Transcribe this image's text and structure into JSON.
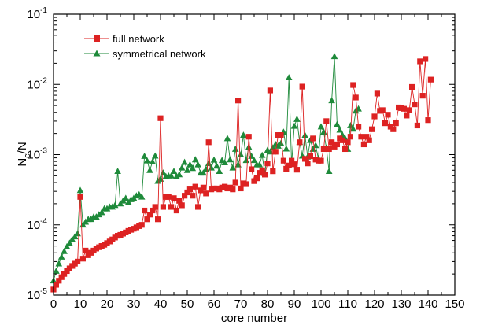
{
  "chart_data": {
    "type": "line",
    "xlabel": "core number",
    "ylabel": "N",
    "ylabel_sub": "c",
    "ylabel_suffix": "/N",
    "xlim": [
      0,
      150
    ],
    "ylim": [
      1e-05,
      0.1
    ],
    "yscale": "log",
    "grid": false,
    "legend_position": "top-left",
    "x_ticks": [
      0,
      10,
      20,
      30,
      40,
      50,
      60,
      70,
      80,
      90,
      100,
      110,
      120,
      130,
      140,
      150
    ],
    "y_ticks": [
      {
        "value": 1e-05,
        "base": "10",
        "exp": "-5"
      },
      {
        "value": 0.0001,
        "base": "10",
        "exp": "-4"
      },
      {
        "value": 0.001,
        "base": "10",
        "exp": "-3"
      },
      {
        "value": 0.01,
        "base": "10",
        "exp": "-2"
      },
      {
        "value": 0.1,
        "base": "10",
        "exp": "-1"
      }
    ],
    "series": [
      {
        "name": "full network",
        "marker": "square",
        "color": "#dd2222",
        "x": [
          0,
          1,
          2,
          3,
          4,
          5,
          6,
          7,
          8,
          9,
          10,
          11,
          12,
          13,
          14,
          15,
          16,
          17,
          18,
          19,
          20,
          21,
          22,
          23,
          24,
          25,
          26,
          27,
          28,
          29,
          30,
          31,
          32,
          33,
          34,
          35,
          36,
          37,
          38,
          39,
          40,
          41,
          42,
          43,
          44,
          45,
          46,
          47,
          48,
          49,
          50,
          51,
          52,
          53,
          54,
          55,
          56,
          57,
          58,
          59,
          60,
          61,
          62,
          63,
          64,
          65,
          66,
          67,
          68,
          69,
          70,
          71,
          72,
          73,
          74,
          75,
          76,
          77,
          78,
          79,
          80,
          81,
          82,
          83,
          84,
          85,
          86,
          87,
          88,
          89,
          90,
          91,
          92,
          93,
          94,
          95,
          96,
          97,
          98,
          99,
          100,
          101,
          102,
          103,
          104,
          105,
          106,
          107,
          108,
          109,
          110,
          111,
          112,
          113,
          114,
          115,
          116,
          117,
          118,
          119,
          120,
          121,
          122,
          123,
          124,
          125,
          126,
          127,
          128,
          129,
          130,
          131,
          132,
          133,
          134,
          135,
          136,
          137,
          138,
          139,
          140,
          141
        ],
        "y": [
          1.2e-05,
          1.4e-05,
          1.6e-05,
          1.8e-05,
          2e-05,
          2.2e-05,
          2.4e-05,
          2.6e-05,
          2.8e-05,
          3e-05,
          0.00025,
          3.3e-05,
          4.3e-05,
          3.7e-05,
          4e-05,
          4.3e-05,
          4.6e-05,
          4.8e-05,
          5e-05,
          5.2e-05,
          5.5e-05,
          5.8e-05,
          6.2e-05,
          6.6e-05,
          7e-05,
          7.2e-05,
          7.5e-05,
          7.8e-05,
          8.2e-05,
          8.5e-05,
          8.8e-05,
          9.2e-05,
          9.6e-05,
          0.0001,
          0.00016,
          0.00012,
          0.00014,
          0.00016,
          0.00018,
          0.00012,
          0.0033,
          0.00018,
          0.00025,
          0.00025,
          0.00018,
          0.00024,
          0.00016,
          0.00022,
          0.00019,
          0.00026,
          0.00029,
          0.00032,
          0.00026,
          0.00035,
          0.00018,
          0.00031,
          0.00034,
          0.00028,
          0.0015,
          0.00032,
          0.00033,
          0.00033,
          0.00032,
          0.00034,
          0.00035,
          0.00033,
          0.00034,
          0.00032,
          0.0004,
          0.0059,
          0.00033,
          0.00039,
          0.00038,
          0.0018,
          0.00062,
          0.00042,
          0.00046,
          0.00055,
          0.0006,
          0.00052,
          0.00075,
          0.0082,
          0.00058,
          0.0011,
          0.0019,
          0.0019,
          0.00082,
          0.00063,
          0.0007,
          0.00082,
          0.00073,
          0.00061,
          0.0015,
          0.0093,
          0.00087,
          0.00075,
          0.00095,
          0.0017,
          0.00085,
          0.00082,
          0.00082,
          0.0012,
          0.003,
          0.0012,
          0.0015,
          0.0013,
          0.0014,
          0.0017,
          0.0016,
          0.0012,
          0.0015,
          0.0018,
          0.0098,
          0.0065,
          0.0025,
          0.0018,
          0.0014,
          0.0018,
          0.0016,
          0.0023,
          0.0035,
          0.0074,
          0.0042,
          0.0043,
          0.0028,
          0.0037,
          0.0025,
          0.0023,
          0.0028,
          0.0047,
          0.0046,
          0.0045,
          0.0036,
          0.0043,
          0.0092,
          0.0052,
          0.0026,
          0.0213,
          0.0069,
          0.023,
          0.0031,
          0.0117
        ]
      },
      {
        "name": "symmetrical network",
        "marker": "triangle",
        "color": "#1e8a3a",
        "x": [
          0,
          1,
          2,
          3,
          4,
          5,
          6,
          7,
          8,
          9,
          10,
          11,
          12,
          13,
          14,
          15,
          16,
          17,
          18,
          19,
          20,
          21,
          22,
          23,
          24,
          25,
          26,
          27,
          28,
          29,
          30,
          31,
          32,
          33,
          34,
          35,
          36,
          37,
          38,
          39,
          40,
          41,
          42,
          43,
          44,
          45,
          46,
          47,
          48,
          49,
          50,
          51,
          52,
          53,
          54,
          55,
          56,
          57,
          58,
          59,
          60,
          61,
          62,
          63,
          64,
          65,
          66,
          67,
          68,
          69,
          70,
          71,
          72,
          73,
          74,
          75,
          76,
          77,
          78,
          79,
          80,
          81,
          82,
          83,
          84,
          85,
          86,
          87,
          88,
          89,
          90,
          91,
          92,
          93,
          94,
          95,
          96,
          97,
          98,
          99,
          100,
          101,
          102,
          103,
          104,
          105,
          106,
          107,
          108,
          109,
          110,
          111,
          112,
          113,
          114
        ],
        "y": [
          1.6e-05,
          2.2e-05,
          2.8e-05,
          3.5e-05,
          4.2e-05,
          4.9e-05,
          5.5e-05,
          6.2e-05,
          6.8e-05,
          7.5e-05,
          0.00031,
          0.0001,
          0.00011,
          0.00012,
          0.00012,
          0.00013,
          0.00013,
          0.00014,
          0.00015,
          0.00017,
          0.00017,
          0.00018,
          0.00018,
          0.00019,
          0.00058,
          0.0002,
          0.00022,
          0.00024,
          0.00021,
          0.00023,
          0.00024,
          0.00026,
          0.00027,
          0.00025,
          0.00095,
          0.00082,
          0.0006,
          0.00079,
          0.00096,
          0.00042,
          0.00045,
          0.00055,
          0.00049,
          0.0005,
          0.0005,
          0.00058,
          0.00049,
          0.00052,
          0.00065,
          0.00078,
          0.0006,
          0.00072,
          0.00064,
          0.00085,
          0.00072,
          0.00055,
          0.00055,
          0.00062,
          0.00075,
          0.00065,
          0.00084,
          0.00069,
          0.00058,
          0.00083,
          0.00077,
          0.0017,
          0.00085,
          0.00065,
          0.0012,
          0.00072,
          0.001,
          0.0019,
          0.00083,
          0.00128,
          0.00095,
          0.00083,
          0.00072,
          0.00072,
          0.00098,
          0.00054,
          0.00116,
          0.0011,
          0.00125,
          0.0014,
          0.00133,
          0.00145,
          0.0021,
          0.00121,
          0.0125,
          0.00073,
          0.00255,
          0.0032,
          0.0015,
          0.00096,
          0.00189,
          0.00093,
          0.0016,
          0.0012,
          0.00135,
          0.00088,
          0.0025,
          0.0021,
          0.00124,
          0.00058,
          0.0059,
          0.025,
          0.0027,
          0.00225,
          0.0019,
          0.0017,
          0.0012,
          0.0026,
          0.00232,
          0.0042,
          0.0045
        ]
      }
    ]
  }
}
